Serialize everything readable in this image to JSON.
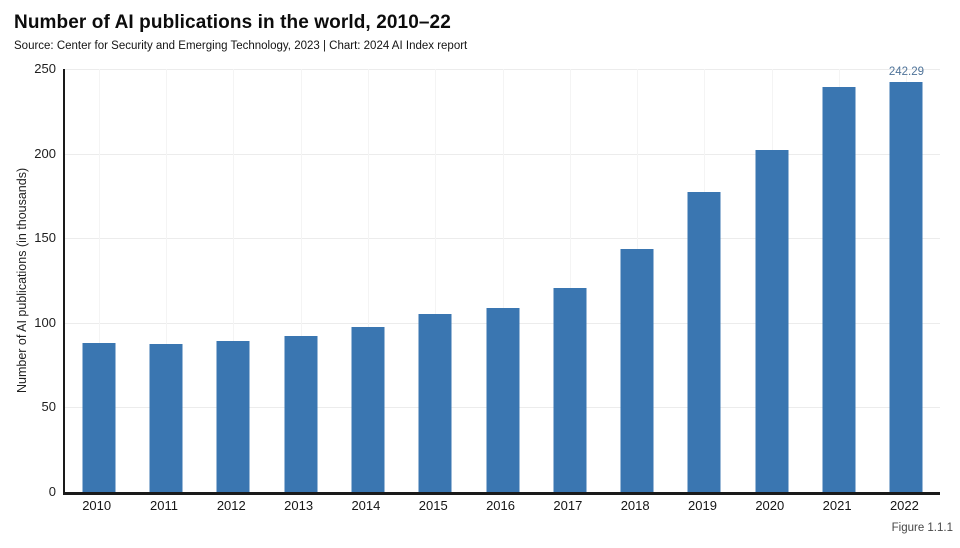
{
  "header": {
    "title": "Number of AI publications in the world, 2010–22",
    "source": "Source: Center for Security and Emerging Technology, 2023 | Chart: 2024 AI Index report"
  },
  "figure_label": "Figure 1.1.1",
  "colors": {
    "bar": "#3a76b1",
    "annotation": "#4f7399",
    "axis": "#1a1a1a",
    "grid_horizontal": "#ececec",
    "grid_vertical": "#f4f4f4",
    "background": "#ffffff"
  },
  "chart_data": {
    "type": "bar",
    "title": "Number of AI publications in the world, 2010–22",
    "categories": [
      "2010",
      "2011",
      "2012",
      "2013",
      "2014",
      "2015",
      "2016",
      "2017",
      "2018",
      "2019",
      "2020",
      "2021",
      "2022"
    ],
    "values": [
      88,
      87.5,
      89.5,
      92.5,
      97.5,
      105,
      108.5,
      120.5,
      143.5,
      177.5,
      202,
      239.5,
      242.29
    ],
    "xlabel": "",
    "ylabel": "Number of AI publications (in thousands)",
    "ylim": [
      0,
      250
    ],
    "yticks": [
      0,
      50,
      100,
      150,
      200,
      250
    ],
    "grid": true,
    "legend": false,
    "annotations": [
      {
        "category": "2022",
        "text": "242.29"
      }
    ]
  }
}
